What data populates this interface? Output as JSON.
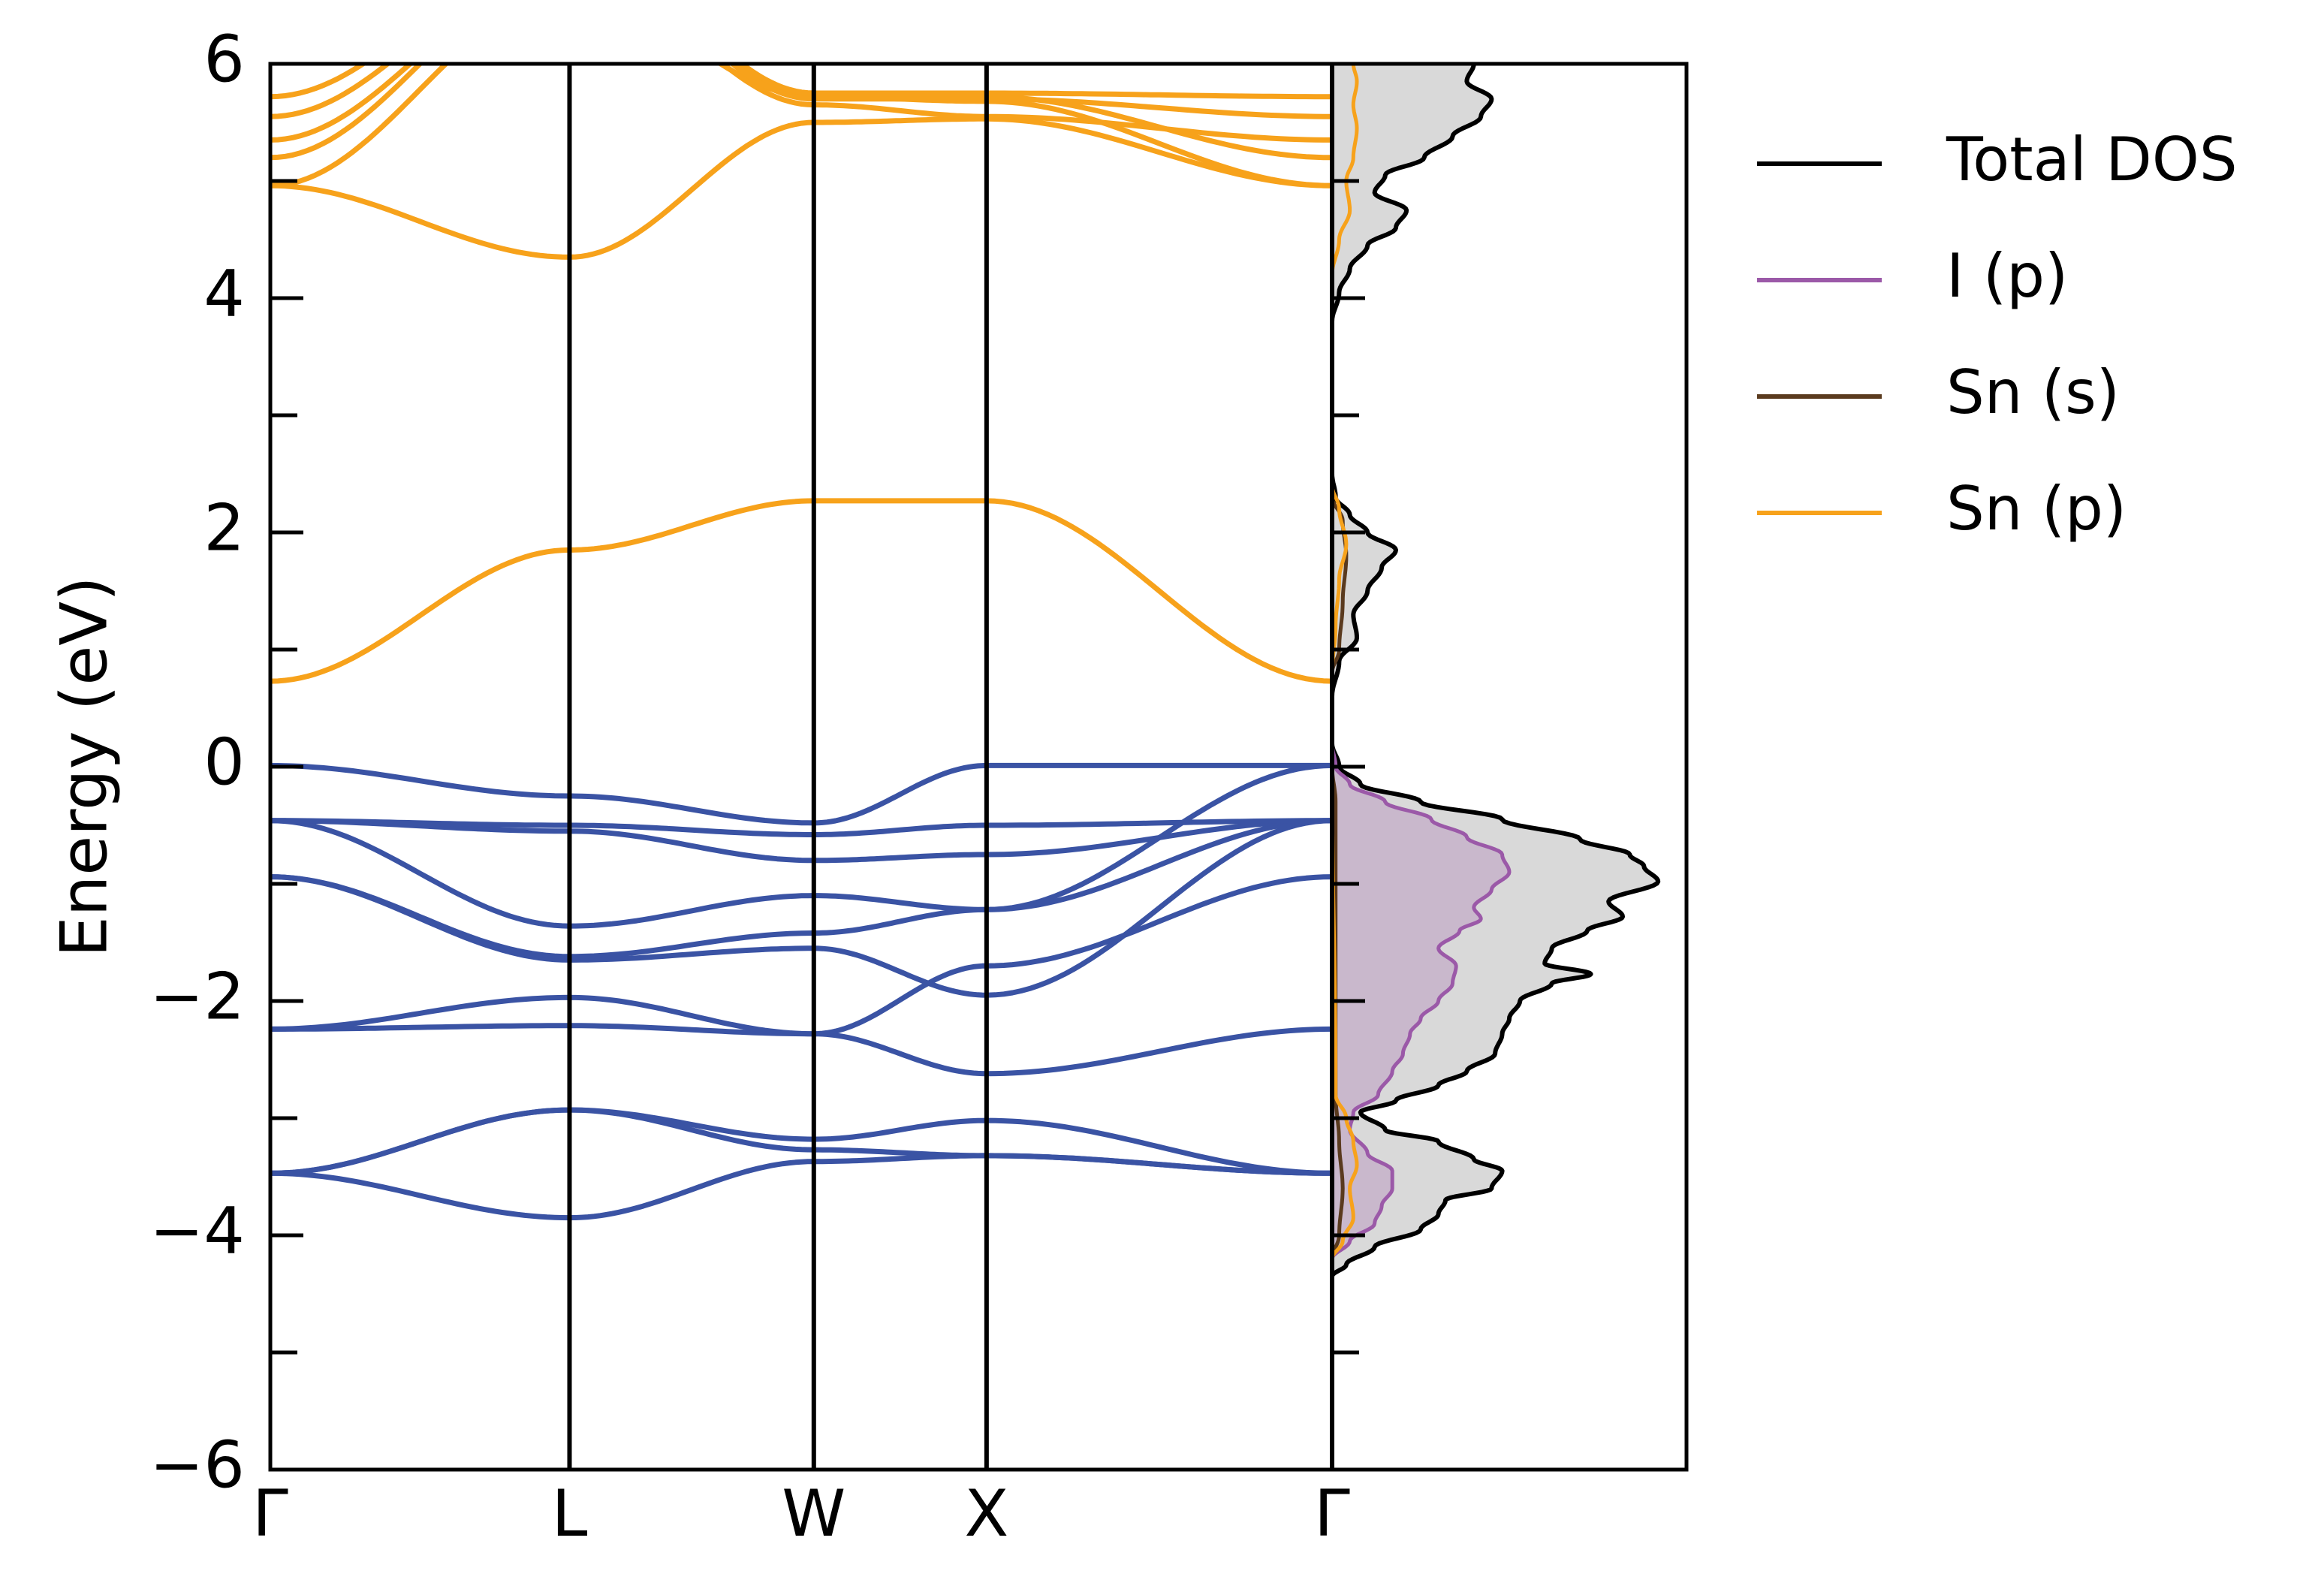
{
  "chart_data": [
    {
      "type": "line",
      "subtype": "band-structure",
      "title": "",
      "ylabel": "Energy (eV)",
      "ylim": [
        -6,
        6
      ],
      "yticks": [
        -6,
        -4,
        -2,
        0,
        2,
        4,
        6
      ],
      "ytick_labels": [
        "−6",
        "−4",
        "−2",
        "0",
        "2",
        "4",
        "6"
      ],
      "kpath_labels": [
        "Γ",
        "L",
        "W",
        "X",
        "Γ"
      ],
      "kpath_positions": [
        0,
        0.866,
        1.573,
        2.073,
        3.073
      ],
      "valence_color": "#3a53a4",
      "conduction_color": "#f7a21b",
      "valence_bands": [
        {
          "x": [
            0,
            0.866,
            1.573,
            2.073,
            3.073
          ],
          "y": [
            -3.47,
            -3.85,
            -3.37,
            -3.32,
            -3.47
          ]
        },
        {
          "x": [
            0,
            0.866,
            1.573,
            2.073,
            3.073
          ],
          "y": [
            -3.47,
            -2.93,
            -3.18,
            -3.02,
            -3.47
          ]
        },
        {
          "x": [
            0,
            0.866,
            1.573,
            2.073,
            3.073
          ],
          "y": [
            -3.47,
            -2.93,
            -3.27,
            -3.32,
            -3.47
          ]
        },
        {
          "x": [
            0,
            0.866,
            1.573,
            2.073,
            3.073
          ],
          "y": [
            -2.24,
            -2.21,
            -2.28,
            -2.62,
            -2.24
          ]
        },
        {
          "x": [
            0,
            0.866,
            1.573,
            2.073,
            3.073
          ],
          "y": [
            -2.24,
            -1.97,
            -2.28,
            -1.7,
            -0.94
          ]
        },
        {
          "x": [
            0,
            0.866,
            1.573,
            2.073,
            3.073
          ],
          "y": [
            -0.94,
            -1.65,
            -1.55,
            -1.95,
            -0.46
          ]
        },
        {
          "x": [
            0,
            0.866,
            1.573,
            2.073,
            3.073
          ],
          "y": [
            -0.94,
            -1.62,
            -1.42,
            -1.22,
            -0.46
          ]
        },
        {
          "x": [
            0,
            0.866,
            1.573,
            2.073,
            3.073
          ],
          "y": [
            -0.46,
            -1.36,
            -1.1,
            -1.22,
            0.01
          ]
        },
        {
          "x": [
            0,
            0.866,
            1.573,
            2.073,
            3.073
          ],
          "y": [
            -0.46,
            -0.55,
            -0.8,
            -0.75,
            -0.46
          ]
        },
        {
          "x": [
            0,
            0.866,
            1.573,
            2.073,
            3.073
          ],
          "y": [
            -0.46,
            -0.5,
            -0.58,
            -0.5,
            -0.46
          ]
        },
        {
          "x": [
            0,
            0.866,
            1.573,
            2.073,
            3.073
          ],
          "y": [
            0.01,
            -0.25,
            -0.48,
            0.01,
            0.01
          ]
        }
      ],
      "conduction_bands": [
        {
          "x": [
            0,
            0.866,
            1.573,
            2.073,
            3.073
          ],
          "y": [
            0.73,
            1.85,
            2.27,
            2.27,
            0.73
          ]
        },
        {
          "x": [
            0,
            0.866,
            1.573,
            2.073,
            3.073
          ],
          "y": [
            4.96,
            4.35,
            5.5,
            5.53,
            4.96
          ]
        },
        {
          "x": [
            0,
            0.866,
            1.573,
            2.073,
            3.073
          ],
          "y": [
            4.96,
            6.6,
            5.72,
            5.68,
            4.96
          ]
        },
        {
          "x": [
            0,
            0.866,
            1.573,
            2.073,
            3.073
          ],
          "y": [
            5.2,
            6.8,
            5.75,
            5.72,
            5.2
          ]
        },
        {
          "x": [
            0,
            0.866,
            1.573,
            2.073,
            3.073
          ],
          "y": [
            5.35,
            6.8,
            5.65,
            5.55,
            5.35
          ]
        },
        {
          "x": [
            0,
            0.866,
            1.573,
            2.073,
            3.073
          ],
          "y": [
            5.55,
            6.9,
            5.7,
            5.7,
            5.55
          ]
        },
        {
          "x": [
            0,
            0.866,
            1.573,
            2.073,
            3.073
          ],
          "y": [
            5.72,
            7.0,
            5.75,
            5.75,
            5.72
          ]
        }
      ]
    },
    {
      "type": "area",
      "subtype": "density-of-states",
      "ylim": [
        -6,
        6
      ],
      "legend_position": "right",
      "series": [
        {
          "name": "Total DOS",
          "color": "#000000",
          "fill": "#d9d9d9",
          "points": [
            [
              -6,
              0
            ],
            [
              -4.35,
              0
            ],
            [
              -4.25,
              0.04
            ],
            [
              -4.1,
              0.12
            ],
            [
              -3.95,
              0.25
            ],
            [
              -3.82,
              0.3
            ],
            [
              -3.7,
              0.32
            ],
            [
              -3.6,
              0.45
            ],
            [
              -3.45,
              0.48
            ],
            [
              -3.35,
              0.4
            ],
            [
              -3.2,
              0.3
            ],
            [
              -3.1,
              0.15
            ],
            [
              -2.95,
              0.08
            ],
            [
              -2.85,
              0.18
            ],
            [
              -2.72,
              0.3
            ],
            [
              -2.6,
              0.38
            ],
            [
              -2.45,
              0.46
            ],
            [
              -2.28,
              0.48
            ],
            [
              -2.15,
              0.5
            ],
            [
              -2.0,
              0.53
            ],
            [
              -1.85,
              0.62
            ],
            [
              -1.77,
              0.73
            ],
            [
              -1.68,
              0.6
            ],
            [
              -1.55,
              0.62
            ],
            [
              -1.4,
              0.72
            ],
            [
              -1.28,
              0.82
            ],
            [
              -1.15,
              0.78
            ],
            [
              -0.98,
              0.92
            ],
            [
              -0.85,
              0.88
            ],
            [
              -0.75,
              0.84
            ],
            [
              -0.62,
              0.7
            ],
            [
              -0.45,
              0.48
            ],
            [
              -0.3,
              0.25
            ],
            [
              -0.15,
              0.08
            ],
            [
              0.0,
              0.02
            ],
            [
              0.2,
              0.0
            ],
            [
              0.6,
              0.0
            ],
            [
              0.9,
              0.02
            ],
            [
              1.1,
              0.07
            ],
            [
              1.3,
              0.06
            ],
            [
              1.5,
              0.1
            ],
            [
              1.7,
              0.14
            ],
            [
              1.85,
              0.18
            ],
            [
              2.0,
              0.1
            ],
            [
              2.15,
              0.05
            ],
            [
              2.3,
              0.01
            ],
            [
              2.5,
              0.0
            ],
            [
              3.8,
              0.0
            ],
            [
              4.05,
              0.02
            ],
            [
              4.25,
              0.05
            ],
            [
              4.45,
              0.1
            ],
            [
              4.6,
              0.18
            ],
            [
              4.75,
              0.21
            ],
            [
              4.9,
              0.12
            ],
            [
              5.05,
              0.15
            ],
            [
              5.2,
              0.26
            ],
            [
              5.38,
              0.34
            ],
            [
              5.55,
              0.42
            ],
            [
              5.7,
              0.45
            ],
            [
              5.85,
              0.38
            ],
            [
              6.0,
              0.4
            ]
          ]
        },
        {
          "name": "I (p)",
          "color": "#9b59a8",
          "fill": "#c9b8cc",
          "points": [
            [
              -6,
              0
            ],
            [
              -4.2,
              0
            ],
            [
              -4.05,
              0.05
            ],
            [
              -3.9,
              0.12
            ],
            [
              -3.75,
              0.14
            ],
            [
              -3.6,
              0.17
            ],
            [
              -3.45,
              0.17
            ],
            [
              -3.3,
              0.1
            ],
            [
              -3.1,
              0.05
            ],
            [
              -2.95,
              0.06
            ],
            [
              -2.8,
              0.13
            ],
            [
              -2.6,
              0.17
            ],
            [
              -2.45,
              0.2
            ],
            [
              -2.28,
              0.22
            ],
            [
              -2.15,
              0.25
            ],
            [
              -2.0,
              0.3
            ],
            [
              -1.85,
              0.34
            ],
            [
              -1.7,
              0.35
            ],
            [
              -1.55,
              0.3
            ],
            [
              -1.4,
              0.36
            ],
            [
              -1.3,
              0.42
            ],
            [
              -1.2,
              0.4
            ],
            [
              -1.05,
              0.45
            ],
            [
              -0.9,
              0.5
            ],
            [
              -0.75,
              0.48
            ],
            [
              -0.6,
              0.38
            ],
            [
              -0.45,
              0.28
            ],
            [
              -0.3,
              0.15
            ],
            [
              -0.15,
              0.05
            ],
            [
              0.0,
              0.01
            ],
            [
              0.2,
              0.0
            ],
            [
              6.0,
              0.0
            ]
          ]
        },
        {
          "name": "Sn (s)",
          "color": "#5a3a1e",
          "points": [
            [
              -6,
              0
            ],
            [
              -4.2,
              0
            ],
            [
              -4.0,
              0.02
            ],
            [
              -3.6,
              0.03
            ],
            [
              -3.2,
              0.02
            ],
            [
              -2.8,
              0.01
            ],
            [
              -0.3,
              0.01
            ],
            [
              0.0,
              0.0
            ],
            [
              0.8,
              0.0
            ],
            [
              1.0,
              0.02
            ],
            [
              1.4,
              0.03
            ],
            [
              1.8,
              0.04
            ],
            [
              2.1,
              0.03
            ],
            [
              2.3,
              0.0
            ],
            [
              6.0,
              0.0
            ]
          ]
        },
        {
          "name": "Sn (p)",
          "color": "#f7a21b",
          "points": [
            [
              -6,
              0
            ],
            [
              -4.2,
              0
            ],
            [
              -4.05,
              0.03
            ],
            [
              -3.85,
              0.06
            ],
            [
              -3.6,
              0.05
            ],
            [
              -3.4,
              0.07
            ],
            [
              -3.2,
              0.06
            ],
            [
              -3.0,
              0.04
            ],
            [
              -2.8,
              0.01
            ],
            [
              0.0,
              0.0
            ],
            [
              0.8,
              0.0
            ],
            [
              1.2,
              0.01
            ],
            [
              1.6,
              0.02
            ],
            [
              1.9,
              0.04
            ],
            [
              2.2,
              0.02
            ],
            [
              2.4,
              0.0
            ],
            [
              4.2,
              0.0
            ],
            [
              4.5,
              0.02
            ],
            [
              4.75,
              0.05
            ],
            [
              5.0,
              0.04
            ],
            [
              5.2,
              0.06
            ],
            [
              5.45,
              0.07
            ],
            [
              5.65,
              0.06
            ],
            [
              5.85,
              0.07
            ],
            [
              6.0,
              0.06
            ]
          ]
        }
      ]
    }
  ],
  "legend": {
    "entries": [
      {
        "label": "Total DOS",
        "color": "#000000"
      },
      {
        "label": "I (p)",
        "color": "#9b59a8"
      },
      {
        "label": "Sn (s)",
        "color": "#5a3a1e"
      },
      {
        "label": "Sn (p)",
        "color": "#f7a21b"
      }
    ]
  }
}
